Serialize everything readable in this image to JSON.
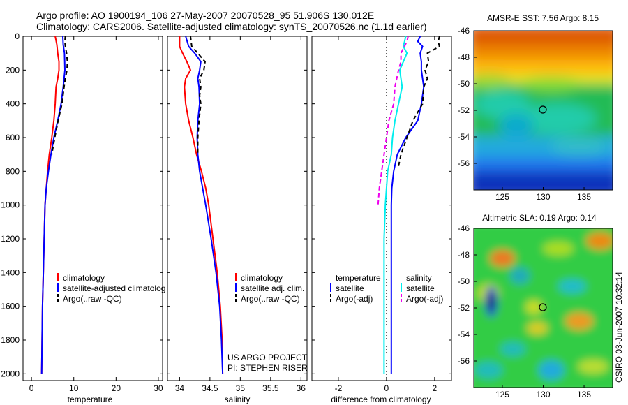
{
  "header": {
    "line1": "Argo profile: AO 1900194_106 27-May-2007 20070528_95 51.906S 130.012E",
    "line2": "Climatology: CARS2006. Satellite-adjusted climatology: synTS_20070526.nc (1.1d earlier)"
  },
  "side_label": "CSIRO 03-Jun-2007 10:32:14",
  "colors": {
    "red": "#ff0000",
    "blue": "#0000ff",
    "black": "#000000",
    "cyan": "#00eeee",
    "magenta": "#ee00ee"
  },
  "chart_data": [
    {
      "type": "line",
      "id": "temperature",
      "xlabel": "temperature",
      "ylabel": "",
      "xlim": [
        -2,
        31
      ],
      "ylim": [
        2040,
        0
      ],
      "xticks": [
        0,
        10,
        20,
        30
      ],
      "yticks": [
        0,
        200,
        400,
        600,
        800,
        1000,
        1200,
        1400,
        1600,
        1800,
        2000
      ],
      "legend": [
        "climatology",
        "satellite-adjusted climatolog",
        "Argo(..raw -QC)"
      ],
      "series": [
        {
          "name": "climatology",
          "color": "red",
          "dash": false,
          "points": [
            [
              5.6,
              0
            ],
            [
              6.0,
              50
            ],
            [
              6.2,
              100
            ],
            [
              6.5,
              150
            ],
            [
              6.5,
              200
            ],
            [
              6.2,
              250
            ],
            [
              5.8,
              300
            ],
            [
              5.6,
              400
            ],
            [
              5.3,
              500
            ],
            [
              4.8,
              600
            ],
            [
              4.2,
              700
            ],
            [
              3.8,
              800
            ],
            [
              3.5,
              900
            ],
            [
              3.2,
              1000
            ],
            [
              3.0,
              1200
            ],
            [
              2.8,
              1400
            ],
            [
              2.6,
              1600
            ],
            [
              2.5,
              1800
            ],
            [
              2.4,
              2000
            ]
          ]
        },
        {
          "name": "satellite-adjusted climatolog",
          "color": "blue",
          "dash": false,
          "points": [
            [
              7.4,
              0
            ],
            [
              7.5,
              50
            ],
            [
              7.8,
              100
            ],
            [
              7.9,
              200
            ],
            [
              7.5,
              300
            ],
            [
              7.0,
              400
            ],
            [
              6.2,
              500
            ],
            [
              5.3,
              600
            ],
            [
              4.6,
              700
            ],
            [
              4.0,
              800
            ],
            [
              3.5,
              900
            ],
            [
              3.2,
              1000
            ],
            [
              3.0,
              1200
            ],
            [
              2.8,
              1400
            ],
            [
              2.6,
              1600
            ],
            [
              2.5,
              1800
            ],
            [
              2.4,
              2000
            ]
          ]
        },
        {
          "name": "Argo(..raw -QC)",
          "color": "black",
          "dash": true,
          "points": [
            [
              8.0,
              0
            ],
            [
              7.9,
              30
            ],
            [
              8.0,
              60
            ],
            [
              8.3,
              100
            ],
            [
              8.5,
              150
            ],
            [
              8.4,
              200
            ],
            [
              8.0,
              250
            ],
            [
              7.7,
              300
            ],
            [
              7.2,
              400
            ],
            [
              6.3,
              500
            ],
            [
              5.5,
              600
            ],
            [
              4.8,
              700
            ]
          ]
        }
      ]
    },
    {
      "type": "line",
      "id": "salinity",
      "xlabel": "salinity",
      "ylabel": "",
      "xlim": [
        33.8,
        36.1
      ],
      "ylim": [
        2040,
        0
      ],
      "xticks": [
        34,
        34.5,
        35,
        35.5,
        36
      ],
      "yticks": [
        0,
        200,
        400,
        600,
        800,
        1000,
        1200,
        1400,
        1600,
        1800,
        2000
      ],
      "legend": [
        "climatology",
        "satellite adj. clim.",
        "Argo(..raw -QC)"
      ],
      "annotation": [
        "US ARGO PROJECT",
        "PI: STEPHEN RISER"
      ],
      "series": [
        {
          "name": "climatology",
          "color": "red",
          "dash": false,
          "points": [
            [
              34.0,
              0
            ],
            [
              34.0,
              60
            ],
            [
              34.05,
              100
            ],
            [
              34.12,
              150
            ],
            [
              34.18,
              200
            ],
            [
              34.1,
              250
            ],
            [
              34.08,
              300
            ],
            [
              34.1,
              400
            ],
            [
              34.15,
              500
            ],
            [
              34.22,
              600
            ],
            [
              34.28,
              700
            ],
            [
              34.36,
              800
            ],
            [
              34.43,
              900
            ],
            [
              34.48,
              1000
            ],
            [
              34.55,
              1200
            ],
            [
              34.62,
              1400
            ],
            [
              34.67,
              1600
            ],
            [
              34.7,
              1800
            ],
            [
              34.71,
              2000
            ]
          ]
        },
        {
          "name": "satellite adj. clim.",
          "color": "blue",
          "dash": false,
          "points": [
            [
              34.1,
              0
            ],
            [
              34.15,
              60
            ],
            [
              34.25,
              100
            ],
            [
              34.35,
              150
            ],
            [
              34.33,
              200
            ],
            [
              34.3,
              250
            ],
            [
              34.32,
              300
            ],
            [
              34.33,
              400
            ],
            [
              34.3,
              500
            ],
            [
              34.29,
              600
            ],
            [
              34.3,
              700
            ],
            [
              34.33,
              800
            ],
            [
              34.38,
              900
            ],
            [
              34.43,
              1000
            ],
            [
              34.52,
              1200
            ],
            [
              34.6,
              1400
            ],
            [
              34.66,
              1600
            ],
            [
              34.69,
              1800
            ],
            [
              34.71,
              2000
            ]
          ]
        },
        {
          "name": "Argo(..raw -QC)",
          "color": "black",
          "dash": true,
          "points": [
            [
              34.18,
              0
            ],
            [
              34.2,
              60
            ],
            [
              34.3,
              100
            ],
            [
              34.42,
              150
            ],
            [
              34.4,
              200
            ],
            [
              34.33,
              250
            ],
            [
              34.35,
              300
            ],
            [
              34.33,
              350
            ],
            [
              34.35,
              400
            ],
            [
              34.32,
              500
            ],
            [
              34.3,
              600
            ],
            [
              34.3,
              700
            ]
          ]
        }
      ]
    },
    {
      "type": "line",
      "id": "difference",
      "xlabel": "difference from climatology",
      "ylabel": "",
      "xlim": [
        -3.1,
        2.7
      ],
      "ylim": [
        2040,
        0
      ],
      "xticks": [
        -2,
        0,
        2
      ],
      "yticks": [
        0,
        200,
        400,
        600,
        800,
        1000,
        1200,
        1400,
        1600,
        1800,
        2000
      ],
      "legend_temperature": {
        "title": "temperature",
        "items": [
          "satellite",
          "Argo(-adj)"
        ]
      },
      "legend_salinity": {
        "title": "salinity",
        "items": [
          "satellite",
          "Argo(-adj)"
        ]
      },
      "series": [
        {
          "name": "satellite",
          "group": "temperature",
          "color": "blue",
          "dash": false,
          "points": [
            [
              1.4,
              0
            ],
            [
              1.3,
              30
            ],
            [
              1.5,
              60
            ],
            [
              1.4,
              100
            ],
            [
              1.45,
              150
            ],
            [
              1.45,
              200
            ],
            [
              1.5,
              250
            ],
            [
              1.55,
              300
            ],
            [
              1.45,
              400
            ],
            [
              1.3,
              500
            ],
            [
              0.8,
              600
            ],
            [
              0.45,
              700
            ],
            [
              0.3,
              800
            ],
            [
              0.22,
              900
            ],
            [
              0.2,
              1000
            ],
            [
              0.2,
              1200
            ],
            [
              0.2,
              1400
            ],
            [
              0.2,
              1600
            ],
            [
              0.2,
              1800
            ],
            [
              0.2,
              2000
            ]
          ]
        },
        {
          "name": "Argo(-adj)",
          "group": "temperature",
          "color": "black",
          "dash": true,
          "points": [
            [
              2.2,
              0
            ],
            [
              2.15,
              30
            ],
            [
              2.2,
              60
            ],
            [
              1.7,
              100
            ],
            [
              1.75,
              150
            ],
            [
              1.6,
              200
            ],
            [
              1.7,
              250
            ],
            [
              1.55,
              300
            ],
            [
              1.5,
              400
            ],
            [
              1.1,
              500
            ],
            [
              0.85,
              600
            ],
            [
              0.6,
              700
            ],
            [
              0.5,
              770
            ]
          ]
        },
        {
          "name": "satellite",
          "group": "salinity",
          "color": "cyan",
          "dash": false,
          "points": [
            [
              0.8,
              0
            ],
            [
              0.75,
              30
            ],
            [
              0.7,
              60
            ],
            [
              0.85,
              100
            ],
            [
              0.7,
              150
            ],
            [
              0.55,
              200
            ],
            [
              0.6,
              250
            ],
            [
              0.65,
              300
            ],
            [
              0.5,
              400
            ],
            [
              0.35,
              500
            ],
            [
              0.25,
              600
            ],
            [
              0.2,
              700
            ],
            [
              0.05,
              800
            ],
            [
              -0.05,
              1000
            ],
            [
              -0.1,
              1200
            ],
            [
              -0.1,
              1400
            ],
            [
              -0.1,
              1600
            ],
            [
              -0.1,
              1800
            ],
            [
              -0.1,
              2000
            ]
          ]
        },
        {
          "name": "Argo(-adj)",
          "group": "salinity",
          "color": "magenta",
          "dash": true,
          "points": [
            [
              0.9,
              0
            ],
            [
              0.85,
              30
            ],
            [
              0.6,
              100
            ],
            [
              0.6,
              150
            ],
            [
              0.5,
              200
            ],
            [
              0.35,
              300
            ],
            [
              0.3,
              400
            ],
            [
              0.1,
              500
            ],
            [
              0.0,
              600
            ],
            [
              -0.1,
              700
            ],
            [
              -0.2,
              800
            ],
            [
              -0.3,
              900
            ],
            [
              -0.35,
              1000
            ]
          ]
        }
      ]
    },
    {
      "type": "heatmap",
      "id": "sst_map",
      "title": "AMSR-E SST: 7.56 Argo: 8.15",
      "xlim": [
        121.5,
        138.5
      ],
      "ylim": [
        -58,
        -46
      ],
      "xticks": [
        125,
        130,
        135
      ],
      "yticks": [
        -46,
        -48,
        -50,
        -52,
        -54,
        -56
      ],
      "marker": [
        130.012,
        -51.906
      ]
    },
    {
      "type": "heatmap",
      "id": "sla_map",
      "title": "Altimetric SLA: 0.19 Argo: 0.14",
      "xlim": [
        121.5,
        138.5
      ],
      "ylim": [
        -58,
        -46
      ],
      "xticks": [
        125,
        130,
        135
      ],
      "yticks": [
        -46,
        -48,
        -50,
        -52,
        -54,
        -56
      ],
      "marker": [
        130.012,
        -51.906
      ]
    }
  ]
}
